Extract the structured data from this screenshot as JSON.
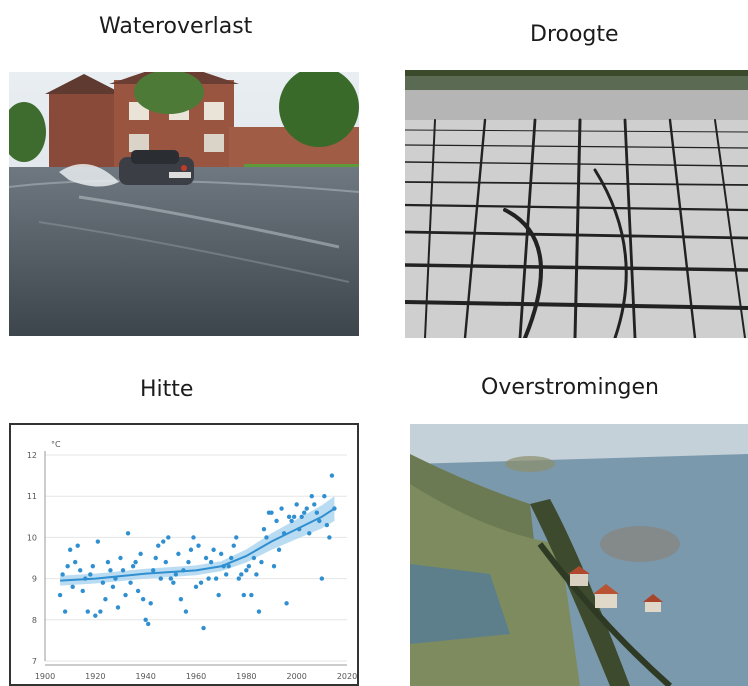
{
  "panels": {
    "top_left": {
      "title": "Wateroverlast"
    },
    "top_right": {
      "title": "Droogte"
    },
    "bottom_left": {
      "title": "Hitte"
    },
    "bottom_right": {
      "title": "Overstromingen"
    }
  },
  "chart_data": {
    "type": "scatter",
    "ylabel": "°C",
    "xlim": [
      1900,
      2020
    ],
    "ylim": [
      7,
      12
    ],
    "xticks": [
      1900,
      1920,
      1940,
      1960,
      1980,
      2000,
      2020
    ],
    "yticks": [
      7,
      8,
      9,
      10,
      11,
      12
    ],
    "x": [
      1906,
      1907,
      1908,
      1909,
      1910,
      1911,
      1912,
      1913,
      1914,
      1915,
      1916,
      1917,
      1918,
      1919,
      1920,
      1921,
      1922,
      1923,
      1924,
      1925,
      1926,
      1927,
      1928,
      1929,
      1930,
      1931,
      1932,
      1933,
      1934,
      1935,
      1936,
      1937,
      1938,
      1939,
      1940,
      1941,
      1942,
      1943,
      1944,
      1945,
      1946,
      1947,
      1948,
      1949,
      1950,
      1951,
      1952,
      1953,
      1954,
      1955,
      1956,
      1957,
      1958,
      1959,
      1960,
      1961,
      1962,
      1963,
      1964,
      1965,
      1966,
      1967,
      1968,
      1969,
      1970,
      1971,
      1972,
      1973,
      1974,
      1975,
      1976,
      1977,
      1978,
      1979,
      1980,
      1981,
      1982,
      1983,
      1984,
      1985,
      1986,
      1987,
      1988,
      1989,
      1990,
      1991,
      1992,
      1993,
      1994,
      1995,
      1996,
      1997,
      1998,
      1999,
      2000,
      2001,
      2002,
      2003,
      2004,
      2005,
      2006,
      2007,
      2008,
      2009,
      2010,
      2011,
      2012,
      2013,
      2014,
      2015
    ],
    "values": [
      8.6,
      9.1,
      8.2,
      9.3,
      9.7,
      8.8,
      9.4,
      9.8,
      9.2,
      8.7,
      9.0,
      8.2,
      9.1,
      9.3,
      8.1,
      9.9,
      8.2,
      8.9,
      8.5,
      9.4,
      9.2,
      8.8,
      9.0,
      8.3,
      9.5,
      9.2,
      8.6,
      10.1,
      8.9,
      9.3,
      9.4,
      8.7,
      9.6,
      8.5,
      8.0,
      7.9,
      8.4,
      9.2,
      9.5,
      9.8,
      9.0,
      9.9,
      9.4,
      10.0,
      9.0,
      8.9,
      9.1,
      9.6,
      8.5,
      9.2,
      8.2,
      9.4,
      9.7,
      10.0,
      8.8,
      9.8,
      8.9,
      7.8,
      9.5,
      9.0,
      9.4,
      9.7,
      9.0,
      8.6,
      9.6,
      9.3,
      9.1,
      9.3,
      9.5,
      9.8,
      10.0,
      9.0,
      9.1,
      8.6,
      9.2,
      9.3,
      8.6,
      9.5,
      9.1,
      8.2,
      9.4,
      10.2,
      10.0,
      10.6,
      10.6,
      9.3,
      10.4,
      9.7,
      10.7,
      10.1,
      8.4,
      10.5,
      10.4,
      10.5,
      10.8,
      10.2,
      10.5,
      10.6,
      10.7,
      10.1,
      11.0,
      10.8,
      10.6,
      10.4,
      9.0,
      11.0,
      10.3,
      10.0,
      11.5,
      10.7
    ],
    "trend_x": [
      1906,
      1920,
      1940,
      1960,
      1970,
      1980,
      1990,
      2000,
      2010,
      2015
    ],
    "trend_y": [
      8.95,
      9.0,
      9.12,
      9.2,
      9.3,
      9.55,
      9.9,
      10.2,
      10.5,
      10.7
    ],
    "grid": true,
    "legend": "none",
    "color": "#2f8fd0",
    "band_color": "#a9d3ef"
  }
}
